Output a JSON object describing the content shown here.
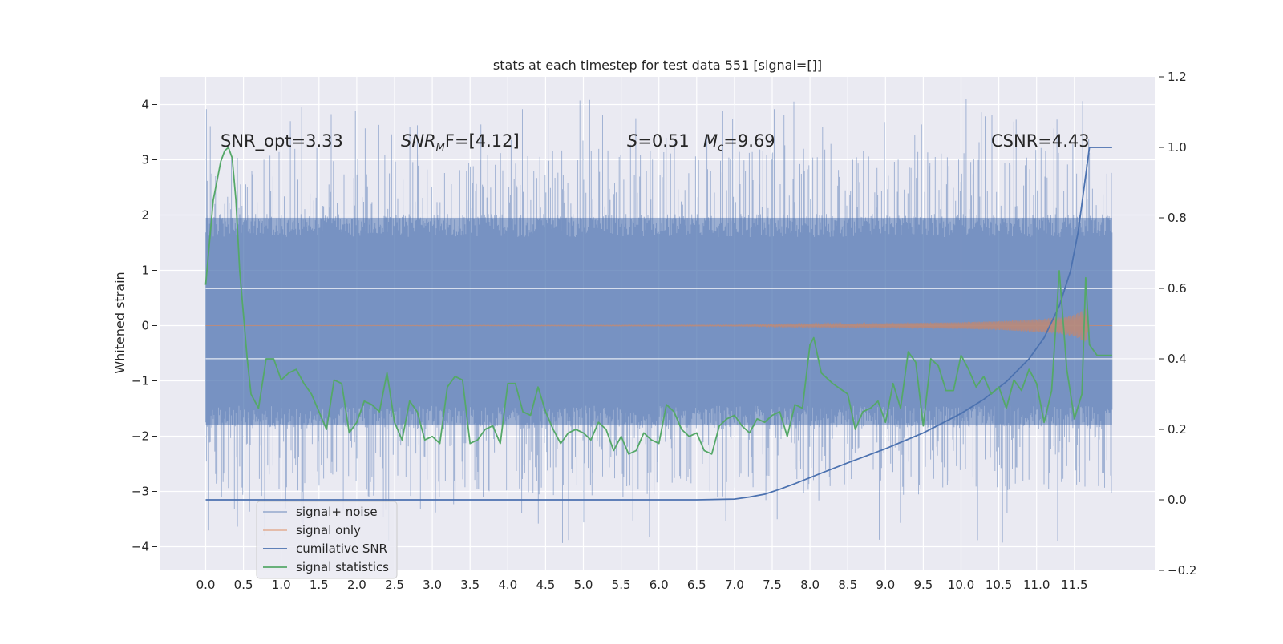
{
  "chart_data": {
    "type": "line",
    "title": "stats at each timestep for test data 551 [signal=[]]",
    "ylabel": "Whitened strain",
    "xlabel": "",
    "xlim": [
      -0.6,
      12.3
    ],
    "ylim": [
      -4.4,
      4.5
    ],
    "y2lim": [
      -0.2,
      1.2
    ],
    "grid": true,
    "x_ticks": [
      "0.0",
      "0.5",
      "1.0",
      "1.5",
      "2.0",
      "2.5",
      "3.0",
      "3.5",
      "4.0",
      "4.5",
      "5.0",
      "5.5",
      "6.0",
      "6.5",
      "7.0",
      "7.5",
      "8.0",
      "8.5",
      "9.0",
      "9.5",
      "10.0",
      "10.5",
      "11.0",
      "11.5"
    ],
    "y_ticks": [
      "4",
      "3",
      "2",
      "1",
      "0",
      "−1",
      "−2",
      "−3",
      "−4"
    ],
    "y2_ticks": [
      "1.2",
      "1.0",
      "0.8",
      "0.6",
      "0.4",
      "0.2",
      "0.0",
      "−0.2"
    ],
    "annotations": {
      "snr_opt": "SNR_opt=3.33",
      "snr_mf_base": "SNR",
      "snr_mf_sub": "M",
      "snr_mf_rest": "F=[4.12]",
      "s_symbol": "S",
      "s_value": "=0.51",
      "mc_symbol": "M",
      "mc_sub": "c",
      "mc_value": "=9.69",
      "csnr": "CSNR=4.43"
    },
    "legend_position": "lower-left",
    "series": [
      {
        "name": "signal+ noise",
        "color": "#4c72b0",
        "axis": "left",
        "style": "band",
        "x_range": [
          0.0,
          12.0
        ],
        "envelope": {
          "typical_upper": 1.95,
          "typical_lower": -1.8,
          "max_peak": 4.1,
          "min_trough": -4.0,
          "inner_hline_levels": [
            0.67,
            -0.6
          ]
        }
      },
      {
        "name": "signal only",
        "color": "#dd8452",
        "axis": "left",
        "style": "chirp",
        "x_range": [
          0.0,
          12.0
        ],
        "amplitude": {
          "x": [
            0.0,
            7.0,
            8.0,
            9.0,
            10.0,
            10.5,
            11.0,
            11.3,
            11.5,
            11.65,
            11.7,
            12.0
          ],
          "y": [
            0.0,
            0.01,
            0.03,
            0.04,
            0.06,
            0.08,
            0.12,
            0.15,
            0.2,
            0.3,
            0.0,
            0.0
          ]
        }
      },
      {
        "name": "cumilative SNR",
        "color": "#4c72b0",
        "axis": "right",
        "x": [
          0.0,
          6.5,
          7.0,
          7.2,
          7.4,
          7.6,
          7.8,
          8.0,
          8.2,
          8.5,
          9.0,
          9.5,
          10.0,
          10.3,
          10.6,
          10.9,
          11.1,
          11.3,
          11.45,
          11.55,
          11.65,
          11.7,
          12.0
        ],
        "y": [
          0.0,
          0.0,
          0.002,
          0.008,
          0.016,
          0.03,
          0.046,
          0.063,
          0.08,
          0.105,
          0.145,
          0.19,
          0.245,
          0.285,
          0.335,
          0.4,
          0.46,
          0.55,
          0.65,
          0.76,
          0.92,
          1.0,
          1.0
        ]
      },
      {
        "name": "signal statistics",
        "color": "#55a868",
        "axis": "right",
        "x": [
          0.0,
          0.1,
          0.2,
          0.25,
          0.3,
          0.35,
          0.4,
          0.45,
          0.55,
          0.6,
          0.7,
          0.8,
          0.9,
          1.0,
          1.1,
          1.2,
          1.3,
          1.4,
          1.5,
          1.6,
          1.7,
          1.8,
          1.9,
          2.0,
          2.1,
          2.2,
          2.3,
          2.4,
          2.5,
          2.6,
          2.7,
          2.8,
          2.9,
          3.0,
          3.1,
          3.2,
          3.3,
          3.4,
          3.5,
          3.6,
          3.7,
          3.8,
          3.9,
          4.0,
          4.1,
          4.2,
          4.3,
          4.4,
          4.5,
          4.6,
          4.7,
          4.8,
          4.9,
          5.0,
          5.1,
          5.2,
          5.3,
          5.4,
          5.5,
          5.6,
          5.7,
          5.8,
          5.9,
          6.0,
          6.1,
          6.2,
          6.3,
          6.4,
          6.5,
          6.6,
          6.7,
          6.8,
          6.9,
          7.0,
          7.1,
          7.2,
          7.3,
          7.4,
          7.5,
          7.6,
          7.7,
          7.8,
          7.9,
          8.0,
          8.05,
          8.15,
          8.3,
          8.5,
          8.6,
          8.7,
          8.8,
          8.9,
          9.0,
          9.1,
          9.2,
          9.3,
          9.4,
          9.5,
          9.6,
          9.7,
          9.8,
          9.9,
          10.0,
          10.1,
          10.2,
          10.3,
          10.4,
          10.5,
          10.6,
          10.7,
          10.8,
          10.9,
          11.0,
          11.1,
          11.2,
          11.3,
          11.4,
          11.5,
          11.6,
          11.65,
          11.7,
          11.8,
          11.9,
          12.0
        ],
        "y": [
          0.61,
          0.85,
          0.96,
          0.99,
          1.0,
          0.97,
          0.85,
          0.65,
          0.4,
          0.3,
          0.26,
          0.4,
          0.4,
          0.34,
          0.36,
          0.37,
          0.33,
          0.3,
          0.25,
          0.2,
          0.34,
          0.33,
          0.19,
          0.22,
          0.28,
          0.27,
          0.25,
          0.36,
          0.22,
          0.17,
          0.28,
          0.25,
          0.17,
          0.18,
          0.16,
          0.32,
          0.35,
          0.34,
          0.16,
          0.17,
          0.2,
          0.21,
          0.16,
          0.33,
          0.33,
          0.25,
          0.24,
          0.32,
          0.25,
          0.2,
          0.16,
          0.19,
          0.2,
          0.19,
          0.17,
          0.22,
          0.2,
          0.14,
          0.18,
          0.13,
          0.14,
          0.19,
          0.17,
          0.16,
          0.27,
          0.25,
          0.2,
          0.18,
          0.19,
          0.14,
          0.13,
          0.21,
          0.23,
          0.24,
          0.21,
          0.19,
          0.23,
          0.22,
          0.24,
          0.25,
          0.18,
          0.27,
          0.26,
          0.44,
          0.46,
          0.36,
          0.33,
          0.3,
          0.2,
          0.25,
          0.26,
          0.28,
          0.22,
          0.33,
          0.26,
          0.42,
          0.39,
          0.21,
          0.4,
          0.38,
          0.31,
          0.31,
          0.41,
          0.37,
          0.32,
          0.35,
          0.3,
          0.32,
          0.26,
          0.34,
          0.31,
          0.37,
          0.33,
          0.22,
          0.31,
          0.65,
          0.37,
          0.23,
          0.3,
          0.63,
          0.44,
          0.41,
          0.41,
          0.41
        ]
      }
    ]
  }
}
